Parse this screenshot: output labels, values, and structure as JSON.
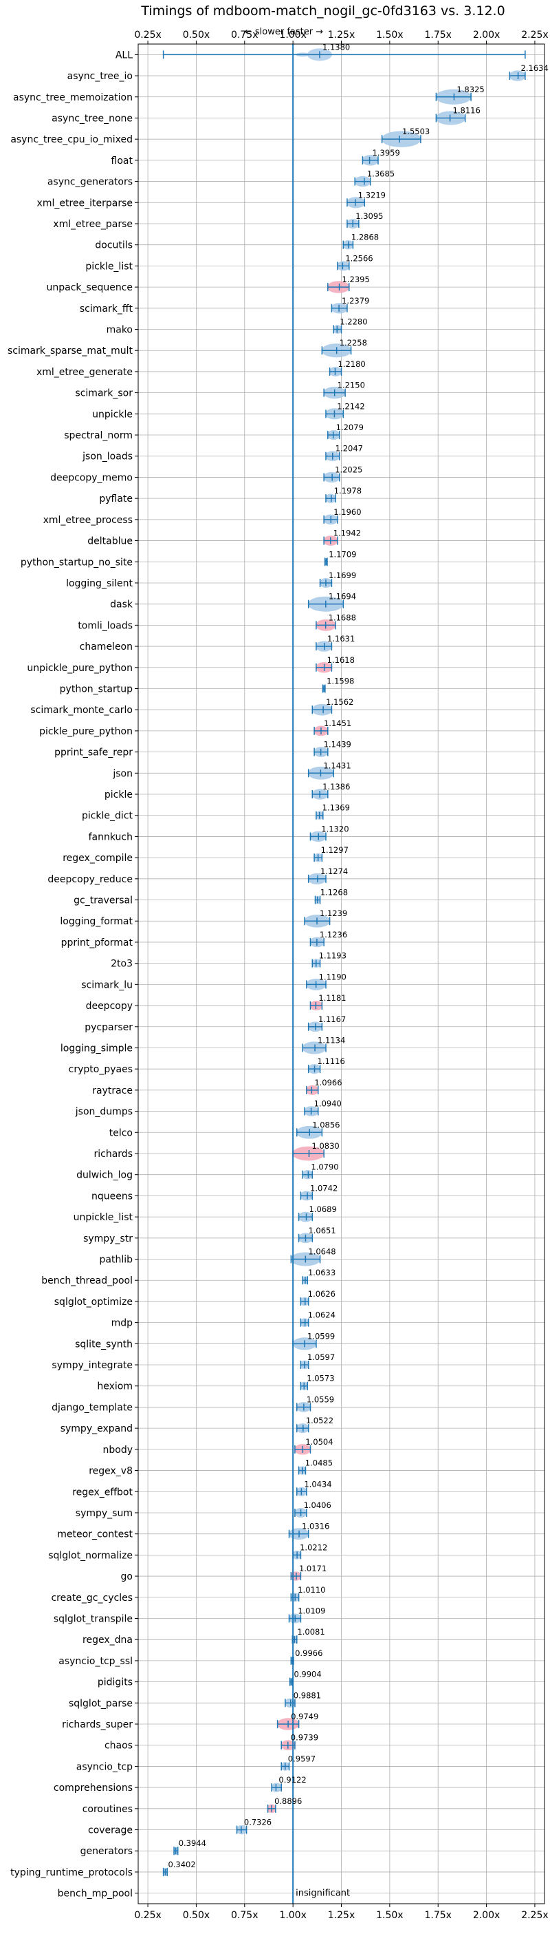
{
  "chart_data": {
    "type": "violin",
    "title": "Timings of mdboom-match_nogil_gc-0fd3163 vs. 3.12.0",
    "direction_label": "← slower   faster →",
    "xlim": [
      0.2,
      2.3
    ],
    "xticks": [
      "0.25x",
      "0.50x",
      "0.75x",
      "1.00x",
      "1.25x",
      "1.50x",
      "1.75x",
      "2.00x",
      "2.25x"
    ],
    "xtick_values": [
      0.25,
      0.5,
      0.75,
      1.0,
      1.25,
      1.5,
      1.75,
      2.0,
      2.25
    ],
    "reference_line": 1.0,
    "grid": true,
    "colors": {
      "faster": "#a6c8e8",
      "slower": "#f4a6b6",
      "line": "#1f77b4"
    },
    "note": "insignificant",
    "benchmarks": [
      {
        "name": "ALL",
        "value": 1.138,
        "label": "1.1380",
        "lo": 0.33,
        "hi": 2.2,
        "slower": false
      },
      {
        "name": "async_tree_io",
        "value": 2.1634,
        "label": "2.1634",
        "lo": 2.12,
        "hi": 2.2,
        "slower": false
      },
      {
        "name": "async_tree_memoization",
        "value": 1.8325,
        "label": "1.8325",
        "lo": 1.74,
        "hi": 1.92,
        "slower": false
      },
      {
        "name": "async_tree_none",
        "value": 1.8116,
        "label": "1.8116",
        "lo": 1.74,
        "hi": 1.89,
        "slower": false
      },
      {
        "name": "async_tree_cpu_io_mixed",
        "value": 1.5503,
        "label": "1.5503",
        "lo": 1.46,
        "hi": 1.66,
        "slower": false
      },
      {
        "name": "float",
        "value": 1.3959,
        "label": "1.3959",
        "lo": 1.36,
        "hi": 1.44,
        "slower": false
      },
      {
        "name": "async_generators",
        "value": 1.3685,
        "label": "1.3685",
        "lo": 1.32,
        "hi": 1.4,
        "slower": false
      },
      {
        "name": "xml_etree_iterparse",
        "value": 1.3219,
        "label": "1.3219",
        "lo": 1.28,
        "hi": 1.37,
        "slower": false
      },
      {
        "name": "xml_etree_parse",
        "value": 1.3095,
        "label": "1.3095",
        "lo": 1.28,
        "hi": 1.34,
        "slower": false
      },
      {
        "name": "docutils",
        "value": 1.2868,
        "label": "1.2868",
        "lo": 1.26,
        "hi": 1.31,
        "slower": false
      },
      {
        "name": "pickle_list",
        "value": 1.2566,
        "label": "1.2566",
        "lo": 1.23,
        "hi": 1.29,
        "slower": false
      },
      {
        "name": "unpack_sequence",
        "value": 1.2395,
        "label": "1.2395",
        "lo": 1.18,
        "hi": 1.29,
        "slower": true
      },
      {
        "name": "scimark_fft",
        "value": 1.2379,
        "label": "1.2379",
        "lo": 1.2,
        "hi": 1.28,
        "slower": false
      },
      {
        "name": "mako",
        "value": 1.228,
        "label": "1.2280",
        "lo": 1.21,
        "hi": 1.25,
        "slower": false
      },
      {
        "name": "scimark_sparse_mat_mult",
        "value": 1.2258,
        "label": "1.2258",
        "lo": 1.15,
        "hi": 1.3,
        "slower": false
      },
      {
        "name": "xml_etree_generate",
        "value": 1.218,
        "label": "1.2180",
        "lo": 1.19,
        "hi": 1.25,
        "slower": false
      },
      {
        "name": "scimark_sor",
        "value": 1.215,
        "label": "1.2150",
        "lo": 1.16,
        "hi": 1.27,
        "slower": false
      },
      {
        "name": "unpickle",
        "value": 1.2142,
        "label": "1.2142",
        "lo": 1.17,
        "hi": 1.26,
        "slower": false
      },
      {
        "name": "spectral_norm",
        "value": 1.2079,
        "label": "1.2079",
        "lo": 1.18,
        "hi": 1.24,
        "slower": false
      },
      {
        "name": "json_loads",
        "value": 1.2047,
        "label": "1.2047",
        "lo": 1.17,
        "hi": 1.24,
        "slower": false
      },
      {
        "name": "deepcopy_memo",
        "value": 1.2025,
        "label": "1.2025",
        "lo": 1.16,
        "hi": 1.24,
        "slower": false
      },
      {
        "name": "pyflate",
        "value": 1.1978,
        "label": "1.1978",
        "lo": 1.17,
        "hi": 1.22,
        "slower": false
      },
      {
        "name": "xml_etree_process",
        "value": 1.196,
        "label": "1.1960",
        "lo": 1.16,
        "hi": 1.23,
        "slower": false
      },
      {
        "name": "deltablue",
        "value": 1.1942,
        "label": "1.1942",
        "lo": 1.16,
        "hi": 1.23,
        "slower": true
      },
      {
        "name": "python_startup_no_site",
        "value": 1.1709,
        "label": "1.1709",
        "lo": 1.165,
        "hi": 1.177,
        "slower": false
      },
      {
        "name": "logging_silent",
        "value": 1.1699,
        "label": "1.1699",
        "lo": 1.14,
        "hi": 1.2,
        "slower": false
      },
      {
        "name": "dask",
        "value": 1.1694,
        "label": "1.1694",
        "lo": 1.08,
        "hi": 1.26,
        "slower": false
      },
      {
        "name": "tomli_loads",
        "value": 1.1688,
        "label": "1.1688",
        "lo": 1.12,
        "hi": 1.22,
        "slower": true
      },
      {
        "name": "chameleon",
        "value": 1.1631,
        "label": "1.1631",
        "lo": 1.12,
        "hi": 1.2,
        "slower": false
      },
      {
        "name": "unpickle_pure_python",
        "value": 1.1618,
        "label": "1.1618",
        "lo": 1.12,
        "hi": 1.2,
        "slower": true
      },
      {
        "name": "python_startup",
        "value": 1.1598,
        "label": "1.1598",
        "lo": 1.154,
        "hi": 1.166,
        "slower": false
      },
      {
        "name": "scimark_monte_carlo",
        "value": 1.1562,
        "label": "1.1562",
        "lo": 1.1,
        "hi": 1.2,
        "slower": false
      },
      {
        "name": "pickle_pure_python",
        "value": 1.1451,
        "label": "1.1451",
        "lo": 1.11,
        "hi": 1.18,
        "slower": true
      },
      {
        "name": "pprint_safe_repr",
        "value": 1.1439,
        "label": "1.1439",
        "lo": 1.11,
        "hi": 1.18,
        "slower": false
      },
      {
        "name": "json",
        "value": 1.1431,
        "label": "1.1431",
        "lo": 1.08,
        "hi": 1.21,
        "slower": false
      },
      {
        "name": "pickle",
        "value": 1.1386,
        "label": "1.1386",
        "lo": 1.1,
        "hi": 1.18,
        "slower": false
      },
      {
        "name": "pickle_dict",
        "value": 1.1369,
        "label": "1.1369",
        "lo": 1.12,
        "hi": 1.155,
        "slower": false
      },
      {
        "name": "fannkuch",
        "value": 1.132,
        "label": "1.1320",
        "lo": 1.09,
        "hi": 1.17,
        "slower": false
      },
      {
        "name": "regex_compile",
        "value": 1.1297,
        "label": "1.1297",
        "lo": 1.11,
        "hi": 1.15,
        "slower": false
      },
      {
        "name": "deepcopy_reduce",
        "value": 1.1274,
        "label": "1.1274",
        "lo": 1.08,
        "hi": 1.17,
        "slower": false
      },
      {
        "name": "gc_traversal",
        "value": 1.1268,
        "label": "1.1268",
        "lo": 1.115,
        "hi": 1.14,
        "slower": false
      },
      {
        "name": "logging_format",
        "value": 1.1239,
        "label": "1.1239",
        "lo": 1.06,
        "hi": 1.19,
        "slower": false
      },
      {
        "name": "pprint_pformat",
        "value": 1.1236,
        "label": "1.1236",
        "lo": 1.09,
        "hi": 1.16,
        "slower": false
      },
      {
        "name": "2to3",
        "value": 1.1193,
        "label": "1.1193",
        "lo": 1.1,
        "hi": 1.14,
        "slower": false
      },
      {
        "name": "scimark_lu",
        "value": 1.119,
        "label": "1.1190",
        "lo": 1.07,
        "hi": 1.17,
        "slower": false
      },
      {
        "name": "deepcopy",
        "value": 1.1181,
        "label": "1.1181",
        "lo": 1.09,
        "hi": 1.15,
        "slower": true
      },
      {
        "name": "pycparser",
        "value": 1.1167,
        "label": "1.1167",
        "lo": 1.08,
        "hi": 1.15,
        "slower": false
      },
      {
        "name": "logging_simple",
        "value": 1.1134,
        "label": "1.1134",
        "lo": 1.05,
        "hi": 1.17,
        "slower": false
      },
      {
        "name": "crypto_pyaes",
        "value": 1.1116,
        "label": "1.1116",
        "lo": 1.08,
        "hi": 1.14,
        "slower": false
      },
      {
        "name": "raytrace",
        "value": 1.0966,
        "label": "1.0966",
        "lo": 1.07,
        "hi": 1.13,
        "slower": true
      },
      {
        "name": "json_dumps",
        "value": 1.094,
        "label": "1.0940",
        "lo": 1.06,
        "hi": 1.13,
        "slower": false
      },
      {
        "name": "telco",
        "value": 1.0856,
        "label": "1.0856",
        "lo": 1.02,
        "hi": 1.15,
        "slower": false
      },
      {
        "name": "richards",
        "value": 1.083,
        "label": "1.0830",
        "lo": 1.0,
        "hi": 1.16,
        "slower": true
      },
      {
        "name": "dulwich_log",
        "value": 1.079,
        "label": "1.0790",
        "lo": 1.05,
        "hi": 1.1,
        "slower": false
      },
      {
        "name": "nqueens",
        "value": 1.0742,
        "label": "1.0742",
        "lo": 1.04,
        "hi": 1.1,
        "slower": false
      },
      {
        "name": "unpickle_list",
        "value": 1.0689,
        "label": "1.0689",
        "lo": 1.03,
        "hi": 1.1,
        "slower": false
      },
      {
        "name": "sympy_str",
        "value": 1.0651,
        "label": "1.0651",
        "lo": 1.03,
        "hi": 1.1,
        "slower": false
      },
      {
        "name": "pathlib",
        "value": 1.0648,
        "label": "1.0648",
        "lo": 0.99,
        "hi": 1.14,
        "slower": false
      },
      {
        "name": "bench_thread_pool",
        "value": 1.0633,
        "label": "1.0633",
        "lo": 1.05,
        "hi": 1.075,
        "slower": false
      },
      {
        "name": "sqlglot_optimize",
        "value": 1.0626,
        "label": "1.0626",
        "lo": 1.04,
        "hi": 1.08,
        "slower": false
      },
      {
        "name": "mdp",
        "value": 1.0624,
        "label": "1.0624",
        "lo": 1.04,
        "hi": 1.08,
        "slower": false
      },
      {
        "name": "sqlite_synth",
        "value": 1.0599,
        "label": "1.0599",
        "lo": 1.0,
        "hi": 1.12,
        "slower": false
      },
      {
        "name": "sympy_integrate",
        "value": 1.0597,
        "label": "1.0597",
        "lo": 1.04,
        "hi": 1.08,
        "slower": false
      },
      {
        "name": "hexiom",
        "value": 1.0573,
        "label": "1.0573",
        "lo": 1.04,
        "hi": 1.075,
        "slower": false
      },
      {
        "name": "django_template",
        "value": 1.0559,
        "label": "1.0559",
        "lo": 1.02,
        "hi": 1.09,
        "slower": false
      },
      {
        "name": "sympy_expand",
        "value": 1.0522,
        "label": "1.0522",
        "lo": 1.02,
        "hi": 1.08,
        "slower": false
      },
      {
        "name": "nbody",
        "value": 1.0504,
        "label": "1.0504",
        "lo": 1.01,
        "hi": 1.09,
        "slower": true
      },
      {
        "name": "regex_v8",
        "value": 1.0485,
        "label": "1.0485",
        "lo": 1.03,
        "hi": 1.065,
        "slower": false
      },
      {
        "name": "regex_effbot",
        "value": 1.0434,
        "label": "1.0434",
        "lo": 1.02,
        "hi": 1.07,
        "slower": false
      },
      {
        "name": "sympy_sum",
        "value": 1.0406,
        "label": "1.0406",
        "lo": 1.01,
        "hi": 1.07,
        "slower": false
      },
      {
        "name": "meteor_contest",
        "value": 1.0316,
        "label": "1.0316",
        "lo": 0.98,
        "hi": 1.08,
        "slower": false
      },
      {
        "name": "sqlglot_normalize",
        "value": 1.0212,
        "label": "1.0212",
        "lo": 1.0,
        "hi": 1.04,
        "slower": false
      },
      {
        "name": "go",
        "value": 1.0171,
        "label": "1.0171",
        "lo": 0.99,
        "hi": 1.04,
        "slower": true
      },
      {
        "name": "create_gc_cycles",
        "value": 1.011,
        "label": "1.0110",
        "lo": 0.99,
        "hi": 1.03,
        "slower": false
      },
      {
        "name": "sqlglot_transpile",
        "value": 1.0109,
        "label": "1.0109",
        "lo": 0.98,
        "hi": 1.04,
        "slower": false
      },
      {
        "name": "regex_dna",
        "value": 1.0081,
        "label": "1.0081",
        "lo": 0.997,
        "hi": 1.02,
        "slower": false
      },
      {
        "name": "asyncio_tcp_ssl",
        "value": 0.9966,
        "label": "0.9966",
        "lo": 0.99,
        "hi": 1.003,
        "slower": false
      },
      {
        "name": "pidigits",
        "value": 0.9904,
        "label": "0.9904",
        "lo": 0.984,
        "hi": 0.997,
        "slower": false
      },
      {
        "name": "sqlglot_parse",
        "value": 0.9881,
        "label": "0.9881",
        "lo": 0.96,
        "hi": 1.01,
        "slower": false
      },
      {
        "name": "richards_super",
        "value": 0.9749,
        "label": "0.9749",
        "lo": 0.92,
        "hi": 1.03,
        "slower": true
      },
      {
        "name": "chaos",
        "value": 0.9739,
        "label": "0.9739",
        "lo": 0.94,
        "hi": 1.01,
        "slower": true
      },
      {
        "name": "asyncio_tcp",
        "value": 0.9597,
        "label": "0.9597",
        "lo": 0.94,
        "hi": 0.98,
        "slower": false
      },
      {
        "name": "comprehensions",
        "value": 0.9122,
        "label": "0.9122",
        "lo": 0.89,
        "hi": 0.94,
        "slower": false
      },
      {
        "name": "coroutines",
        "value": 0.8896,
        "label": "0.8896",
        "lo": 0.87,
        "hi": 0.91,
        "slower": true
      },
      {
        "name": "coverage",
        "value": 0.7326,
        "label": "0.7326",
        "lo": 0.71,
        "hi": 0.76,
        "slower": false
      },
      {
        "name": "generators",
        "value": 0.3944,
        "label": "0.3944",
        "lo": 0.385,
        "hi": 0.405,
        "slower": false
      },
      {
        "name": "typing_runtime_protocols",
        "value": 0.3402,
        "label": "0.3402",
        "lo": 0.33,
        "hi": 0.35,
        "slower": false
      },
      {
        "name": "bench_mp_pool",
        "value": 1.0,
        "label": "",
        "lo": 1.0,
        "hi": 1.0,
        "slower": false,
        "insignificant": true
      }
    ]
  }
}
